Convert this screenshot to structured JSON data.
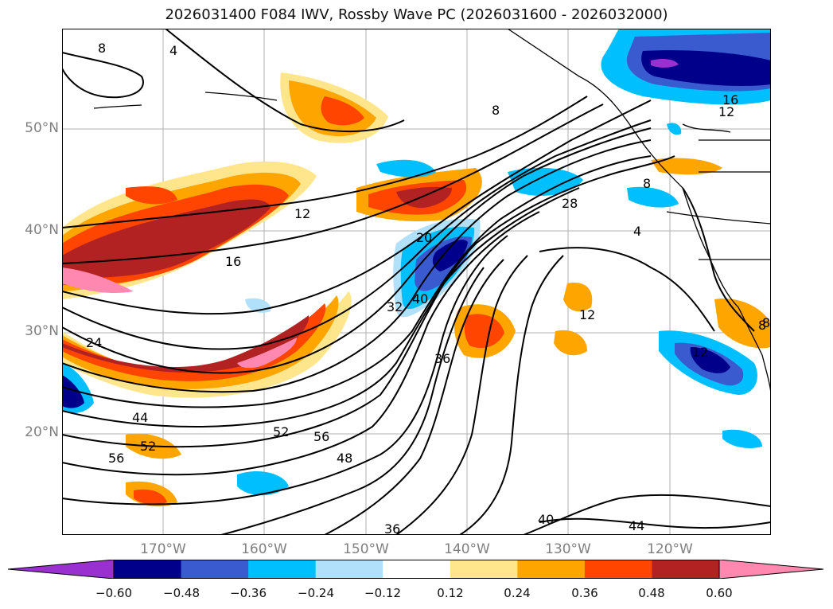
{
  "title": "2026031400 F084 IWV, Rossby Wave PC (2026031600 - 2026032000)",
  "lat_labels": [
    "50°N",
    "40°N",
    "30°N",
    "20°N"
  ],
  "lon_labels": [
    "170°W",
    "160°W",
    "150°W",
    "140°W",
    "130°W",
    "120°W"
  ],
  "contour_labels": [
    "8",
    "4",
    "8",
    "16",
    "12",
    "16",
    "12",
    "20",
    "28",
    "8",
    "4",
    "32",
    "40",
    "12",
    "24",
    "36",
    "12",
    "8",
    "44",
    "52",
    "56",
    "56",
    "52",
    "48",
    "36",
    "40",
    "44",
    "8"
  ],
  "colorbar": {
    "ticks": [
      "−0.60",
      "−0.48",
      "−0.36",
      "−0.24",
      "−0.12",
      "0.12",
      "0.24",
      "0.36",
      "0.48",
      "0.60"
    ],
    "colors": [
      "#9b30d0",
      "#00008b",
      "#3a5bd0",
      "#00bfff",
      "#b0e0fa",
      "#ffffff",
      "#ffe68c",
      "#ffa500",
      "#ff4500",
      "#b22222",
      "#ff88b0"
    ]
  }
}
